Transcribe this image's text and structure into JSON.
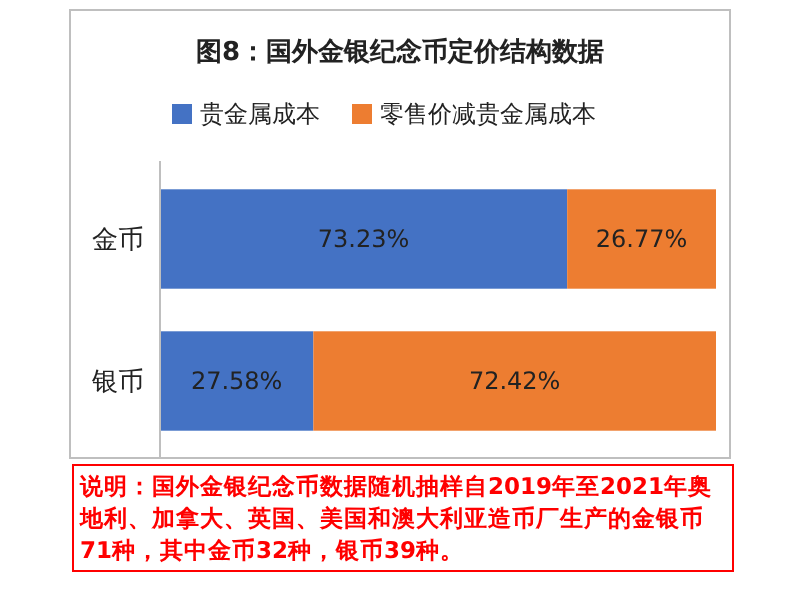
{
  "chart_data": {
    "type": "bar",
    "orientation": "horizontal",
    "stacked": true,
    "title": "图8：国外金银纪念币定价结构数据",
    "categories": [
      "金币",
      "银币"
    ],
    "series": [
      {
        "name": "贵金属成本",
        "color": "#4472c4",
        "values": [
          73.23,
          27.58
        ],
        "value_labels": [
          "73.23%",
          "27.58%"
        ]
      },
      {
        "name": "零售价减贵金属成本",
        "color": "#ed7d31",
        "values": [
          26.77,
          72.42
        ],
        "value_labels": [
          "26.77%",
          "72.42%"
        ]
      }
    ],
    "legend": "top",
    "tick_labels": "y",
    "annotations": [
      "说明：国外金银纪念币数据随机抽样自2019年至2021年奥地利、加拿大、英国、美国和澳大利亚造币厂生产的金银币71种，其中金币32种，银币39种。"
    ]
  }
}
